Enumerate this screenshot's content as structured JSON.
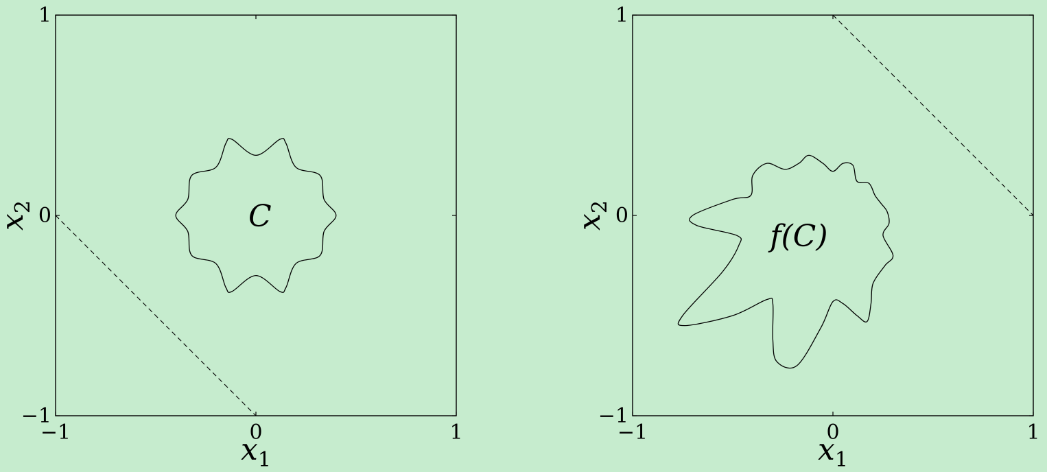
{
  "chart_data": [
    {
      "type": "line",
      "xlabel": "x",
      "xlabel_sub": "1",
      "ylabel": "x",
      "ylabel_sub": "2",
      "xlim": [
        -1,
        1
      ],
      "ylim": [
        -1,
        1
      ],
      "xticks": [
        "−1",
        "0",
        "1"
      ],
      "yticks": [
        "−1",
        "0",
        "1"
      ],
      "grid": false,
      "annotation": "C",
      "annotation_pos": [
        0.02,
        0.0
      ],
      "curve": {
        "style": "solid",
        "closed": true,
        "points": [
          [
            0.4,
            0.0
          ],
          [
            0.34,
            0.08
          ],
          [
            0.32,
            0.2
          ],
          [
            0.2,
            0.24
          ],
          [
            0.15,
            0.36
          ],
          [
            0.12,
            0.38
          ],
          [
            0.0,
            0.3
          ],
          [
            -0.12,
            0.38
          ],
          [
            -0.15,
            0.36
          ],
          [
            -0.2,
            0.24
          ],
          [
            -0.32,
            0.2
          ],
          [
            -0.34,
            0.08
          ],
          [
            -0.4,
            0.0
          ],
          [
            -0.34,
            -0.08
          ],
          [
            -0.32,
            -0.2
          ],
          [
            -0.2,
            -0.24
          ],
          [
            -0.15,
            -0.36
          ],
          [
            -0.12,
            -0.38
          ],
          [
            0.0,
            -0.3
          ],
          [
            0.12,
            -0.38
          ],
          [
            0.15,
            -0.36
          ],
          [
            0.2,
            -0.24
          ],
          [
            0.32,
            -0.2
          ],
          [
            0.34,
            -0.08
          ]
        ]
      },
      "line": {
        "style": "dashed",
        "points": [
          [
            -1.0,
            0.0
          ],
          [
            0.0,
            -1.0
          ]
        ]
      }
    },
    {
      "type": "line",
      "xlabel": "x",
      "xlabel_sub": "1",
      "ylabel": "x",
      "ylabel_sub": "2",
      "xlim": [
        -1,
        1
      ],
      "ylim": [
        -1,
        1
      ],
      "xticks": [
        "−1",
        "0",
        "1"
      ],
      "yticks": [
        "−1",
        "0",
        "1"
      ],
      "grid": false,
      "annotation": "f(C)",
      "annotation_pos": [
        -0.17,
        -0.1
      ],
      "curve": {
        "style": "solid",
        "closed": true,
        "points": [
          [
            -0.7,
            0.0
          ],
          [
            -0.5,
            0.08
          ],
          [
            -0.41,
            0.1
          ],
          [
            -0.4,
            0.2
          ],
          [
            -0.33,
            0.26
          ],
          [
            -0.24,
            0.23
          ],
          [
            -0.17,
            0.26
          ],
          [
            -0.12,
            0.3
          ],
          [
            -0.05,
            0.26
          ],
          [
            0.0,
            0.22
          ],
          [
            0.05,
            0.26
          ],
          [
            0.1,
            0.25
          ],
          [
            0.12,
            0.17
          ],
          [
            0.18,
            0.16
          ],
          [
            0.21,
            0.1
          ],
          [
            0.24,
            0.06
          ],
          [
            0.27,
            0.02
          ],
          [
            0.28,
            -0.04
          ],
          [
            0.25,
            -0.1
          ],
          [
            0.3,
            -0.2
          ],
          [
            0.26,
            -0.25
          ],
          [
            0.2,
            -0.34
          ],
          [
            0.19,
            -0.44
          ],
          [
            0.17,
            -0.53
          ],
          [
            0.12,
            -0.5
          ],
          [
            0.05,
            -0.44
          ],
          [
            0.0,
            -0.43
          ],
          [
            -0.06,
            -0.56
          ],
          [
            -0.18,
            -0.75
          ],
          [
            -0.28,
            -0.73
          ],
          [
            -0.3,
            -0.62
          ],
          [
            -0.3,
            -0.44
          ],
          [
            -0.33,
            -0.42
          ],
          [
            -0.5,
            -0.5
          ],
          [
            -0.74,
            -0.55
          ],
          [
            -0.75,
            -0.5
          ],
          [
            -0.55,
            -0.28
          ],
          [
            -0.47,
            -0.15
          ],
          [
            -0.48,
            -0.1
          ],
          [
            -0.68,
            -0.05
          ]
        ]
      },
      "line": {
        "style": "dashed",
        "points": [
          [
            0.0,
            1.0
          ],
          [
            1.0,
            0.0
          ]
        ]
      }
    }
  ]
}
